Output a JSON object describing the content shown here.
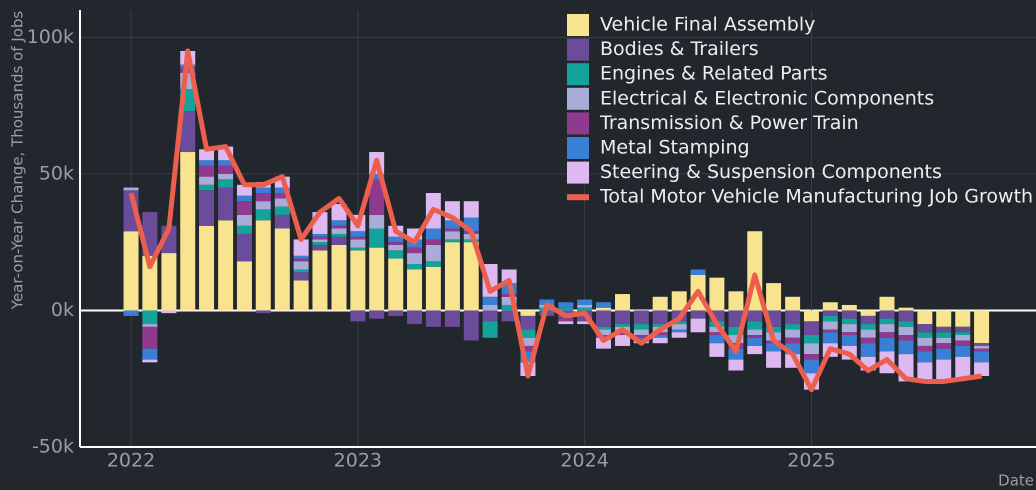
{
  "chart_data": {
    "type": "bar",
    "stacked": true,
    "y_label": "Year-on-Year Change, Thousands of Jobs",
    "x_label": "Date",
    "x": [
      2022,
      2022.083,
      2022.167,
      2022.25,
      2022.333,
      2022.417,
      2022.5,
      2022.583,
      2022.667,
      2022.75,
      2022.833,
      2022.917,
      2023,
      2023.083,
      2023.167,
      2023.25,
      2023.333,
      2023.417,
      2023.5,
      2023.583,
      2023.667,
      2023.75,
      2023.833,
      2023.917,
      2024,
      2024.083,
      2024.167,
      2024.25,
      2024.333,
      2024.417,
      2024.5,
      2024.583,
      2024.667,
      2024.75,
      2024.833,
      2024.917,
      2025,
      2025.083,
      2025.167,
      2025.25,
      2025.333,
      2025.417,
      2025.5,
      2025.583,
      2025.667,
      2025.75
    ],
    "xlim": [
      2021.775,
      2025.99
    ],
    "xticks": [
      2022,
      2023,
      2024,
      2025
    ],
    "ylim": [
      -50,
      110
    ],
    "yticks": [
      {
        "value": -50,
        "label": "-50k"
      },
      {
        "value": 0,
        "label": "0k"
      },
      {
        "value": 50,
        "label": "50k"
      },
      {
        "value": 100,
        "label": "100k"
      }
    ],
    "grid": true,
    "legend": "top-right",
    "series": [
      {
        "name": "Vehicle Final Assembly",
        "color": "#f8e48e",
        "values": [
          29,
          20,
          21,
          58,
          31,
          33,
          18,
          33,
          30,
          11,
          22,
          24,
          22,
          23,
          19,
          15,
          16,
          25,
          25,
          0,
          0,
          -2,
          0,
          0,
          0,
          1,
          6,
          0,
          5,
          7,
          13,
          12,
          7,
          29,
          10,
          5,
          -4,
          3,
          2,
          -2,
          5,
          1,
          -5,
          -6,
          -6,
          -12
        ]
      },
      {
        "name": "Bodies & Trailers",
        "color": "#6b4c9a",
        "values": [
          15,
          16,
          10,
          15,
          13,
          12,
          10,
          -1,
          5,
          3,
          2,
          3,
          -4,
          -3,
          -2,
          -5,
          -6,
          -6,
          -11,
          -4,
          -4,
          -5,
          -2,
          -3,
          -4,
          -6,
          -5,
          -5,
          -5,
          -4,
          -3,
          -4,
          -6,
          -4,
          -6,
          -5,
          -5,
          -2,
          -3,
          -3,
          -3,
          -4,
          -3,
          -2,
          -2,
          -1
        ]
      },
      {
        "name": "Engines & Related Parts",
        "color": "#14a39a",
        "values": [
          0,
          -5,
          0,
          8,
          2,
          3,
          3,
          4,
          3,
          1,
          1,
          1,
          1,
          7,
          3,
          2,
          2,
          1,
          1,
          -6,
          2,
          -3,
          1,
          1,
          1,
          -1,
          -1,
          -2,
          -1,
          -1,
          0,
          -2,
          -3,
          -3,
          -2,
          -2,
          -3,
          -2,
          -2,
          -2,
          -2,
          -2,
          -2,
          -2,
          -1,
          0
        ]
      },
      {
        "name": "Electrical & Electronic Components",
        "color": "#a9acd8",
        "values": [
          1,
          -1,
          0,
          6,
          3,
          2,
          4,
          3,
          3,
          3,
          1,
          2,
          3,
          5,
          2,
          4,
          6,
          3,
          2,
          2,
          3,
          -3,
          1,
          0,
          1,
          -2,
          -2,
          -2,
          -2,
          -2,
          0,
          -2,
          -3,
          -2,
          -3,
          -3,
          -4,
          -3,
          -3,
          -3,
          -3,
          -3,
          -3,
          -2,
          -2,
          -1
        ]
      },
      {
        "name": "Transmission & Power Train",
        "color": "#8f3a8f",
        "values": [
          0,
          -8,
          0,
          2,
          4,
          3,
          5,
          3,
          2,
          1,
          1,
          1,
          1,
          13,
          1,
          2,
          2,
          1,
          1,
          0,
          1,
          -2,
          0,
          -1,
          0,
          -1,
          -1,
          -1,
          -1,
          0,
          0,
          -1,
          -2,
          -1,
          -1,
          -2,
          -2,
          -1,
          -1,
          -2,
          -2,
          -2,
          -2,
          -2,
          -2,
          -1
        ]
      },
      {
        "name": "Metal Stamping",
        "color": "#3a7fd6",
        "values": [
          -2,
          -4,
          0,
          1,
          2,
          2,
          2,
          2,
          2,
          1,
          1,
          2,
          2,
          2,
          2,
          3,
          4,
          3,
          5,
          3,
          4,
          -4,
          2,
          2,
          2,
          2,
          0,
          -1,
          -1,
          -1,
          2,
          -3,
          -4,
          -3,
          -3,
          -4,
          -5,
          -4,
          -4,
          -5,
          -5,
          -5,
          -4,
          -4,
          -4,
          -4
        ]
      },
      {
        "name": "Steering & Suspension Components",
        "color": "#ddb8f1",
        "values": [
          0,
          -1,
          -1,
          5,
          4,
          5,
          4,
          2,
          4,
          6,
          8,
          6,
          6,
          8,
          4,
          4,
          13,
          7,
          6,
          12,
          5,
          -5,
          0,
          -1,
          -1,
          -4,
          -4,
          -1,
          -2,
          -2,
          -5,
          -5,
          -4,
          -3,
          -6,
          -5,
          -6,
          -5,
          -5,
          -5,
          -8,
          -10,
          -7,
          -8,
          -8,
          -5
        ]
      },
      {
        "name": "Total Motor Vehicle Manufacturing Job Growth",
        "color": "#ec5f4d",
        "type": "line",
        "values": [
          43,
          16,
          30,
          95,
          59,
          60,
          46,
          46,
          49,
          26,
          36,
          41,
          31,
          55,
          29,
          25,
          37,
          34,
          29,
          7,
          11,
          -24,
          2,
          -2,
          -1,
          -11,
          -7,
          -12,
          -7,
          -3,
          7,
          -5,
          -15,
          13,
          -11,
          -16,
          -29,
          -14,
          -16,
          -22,
          -18,
          -25,
          -26,
          -26,
          -25,
          -24
        ]
      }
    ]
  }
}
